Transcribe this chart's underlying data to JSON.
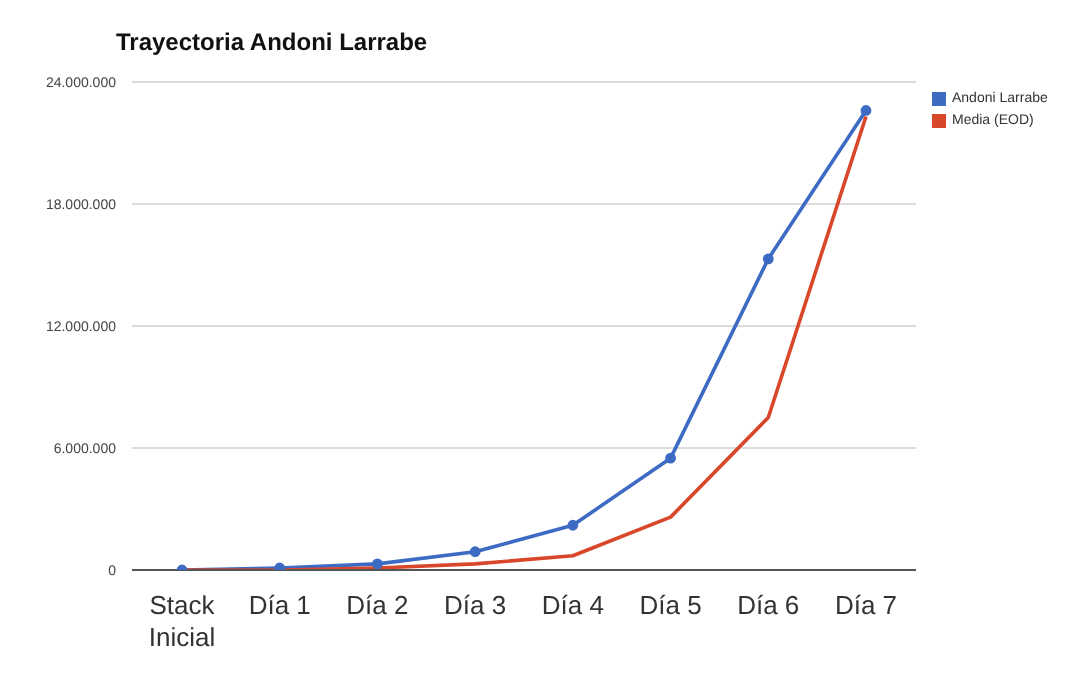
{
  "chart_data": {
    "type": "line",
    "title": "Trayectoria Andoni Larrabe",
    "categories": [
      "Stack Inicial",
      "Día 1",
      "Día 2",
      "Día 3",
      "Día 4",
      "Día 5",
      "Día 6",
      "Día 7"
    ],
    "series": [
      {
        "name": "Andoni Larrabe",
        "color": "#3d6bc4",
        "marker": "circle",
        "values": [
          0,
          100000,
          300000,
          900000,
          2200000,
          5500000,
          15300000,
          22600000
        ]
      },
      {
        "name": "Media (EOD)",
        "color": "#d9472b",
        "marker": "none",
        "values": [
          0,
          0,
          100000,
          300000,
          700000,
          2600000,
          7500000,
          22300000
        ]
      }
    ],
    "ylim": [
      0,
      24000000
    ],
    "yticks": [
      {
        "value": 0,
        "label": "0"
      },
      {
        "value": 6000000,
        "label": "6.000.000"
      },
      {
        "value": 12000000,
        "label": "12.000.000"
      },
      {
        "value": 18000000,
        "label": "18.000.000"
      },
      {
        "value": 24000000,
        "label": "24.000.000"
      }
    ],
    "grid": "y",
    "legend": "top right",
    "line_style": "solid"
  }
}
